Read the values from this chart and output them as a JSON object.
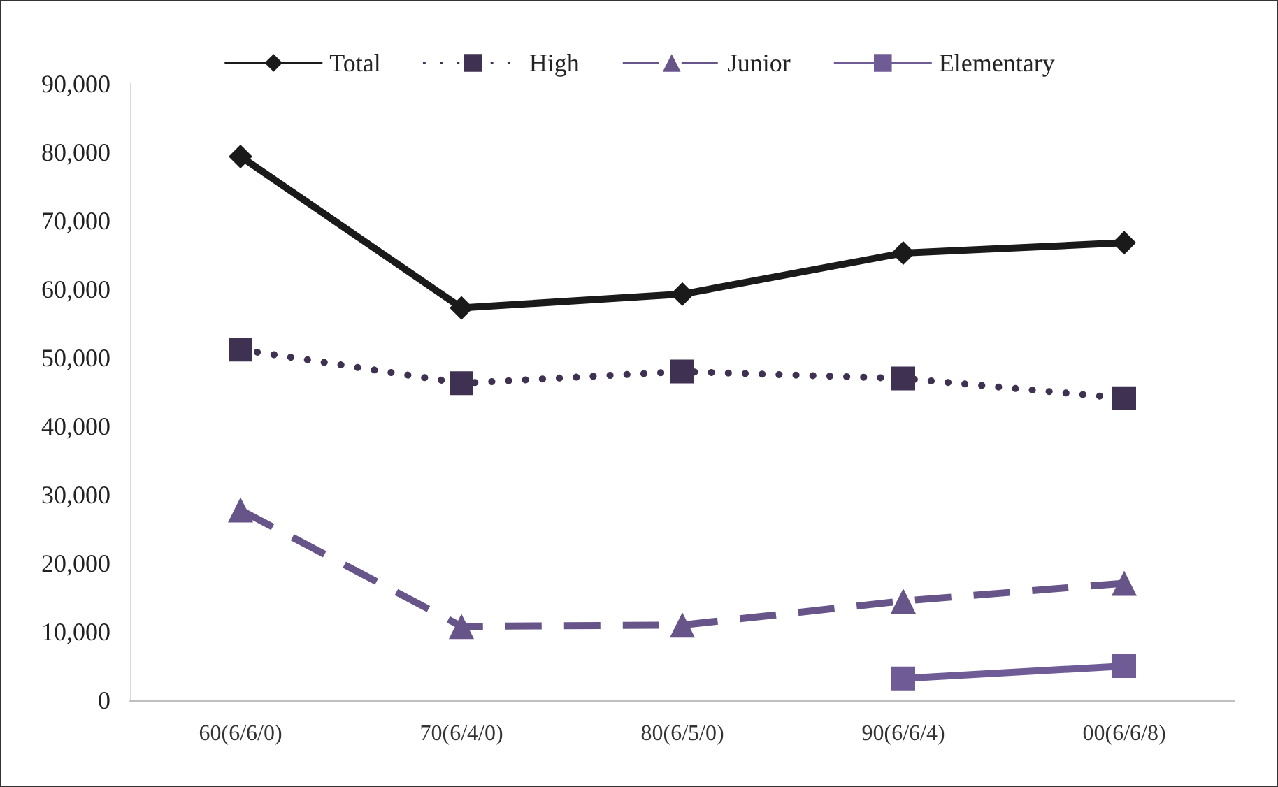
{
  "chart_data": {
    "type": "line",
    "categories": [
      "60(6/6/0)",
      "70(6/4/0)",
      "80(6/5/0)",
      "90(6/6/4)",
      "00(6/6/8)"
    ],
    "series": [
      {
        "name": "Total",
        "color": "#1a1a1a",
        "marker": "diamond",
        "line_style": "solid",
        "values": [
          79400,
          57300,
          59300,
          65300,
          66800
        ]
      },
      {
        "name": "High",
        "color": "#3f3151",
        "marker": "square",
        "line_style": "dotted",
        "values": [
          51200,
          46300,
          48000,
          47000,
          44100
        ]
      },
      {
        "name": "Junior",
        "color": "#67558a",
        "marker": "triangle",
        "line_style": "dashed",
        "values": [
          27800,
          10800,
          11000,
          14500,
          17100
        ]
      },
      {
        "name": "Elementary",
        "color": "#6f5c96",
        "marker": "square",
        "line_style": "solid",
        "values": [
          null,
          null,
          null,
          3200,
          5000
        ]
      }
    ],
    "ylim": [
      0,
      90000
    ],
    "yticks": [
      0,
      {
        "value": 10000,
        "label": "10,000"
      },
      {
        "value": 20000,
        "label": "20,000"
      },
      {
        "value": 30000,
        "label": "30,000"
      },
      {
        "value": 40000,
        "label": "40,000"
      },
      {
        "value": 50000,
        "label": "50,000"
      },
      {
        "value": 60000,
        "label": "60,000"
      },
      {
        "value": 70000,
        "label": "70,000"
      },
      {
        "value": 80000,
        "label": "80,000"
      },
      {
        "value": 90000,
        "label": "90,000"
      }
    ],
    "grid": false,
    "legend": "top"
  }
}
